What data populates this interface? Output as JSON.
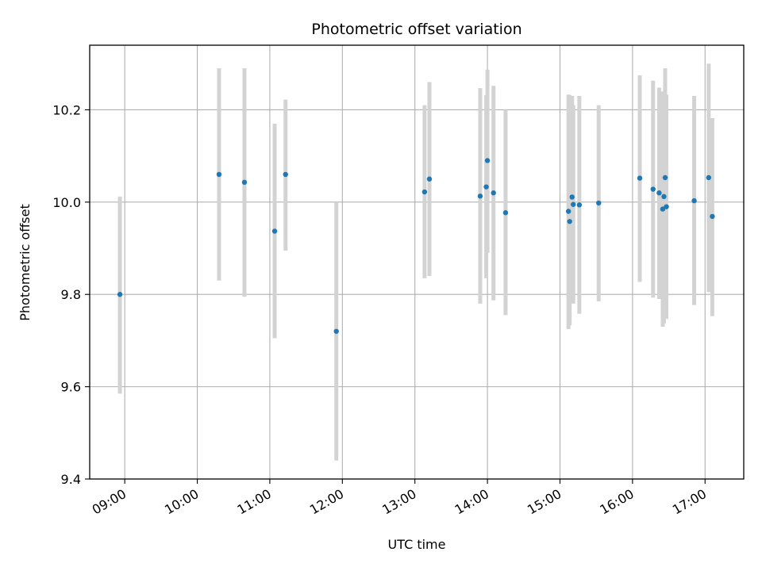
{
  "chart_data": {
    "type": "scatter",
    "title": "Photometric offset variation",
    "xlabel": "UTC time",
    "ylabel": "Photometric offset",
    "x_axis": "time",
    "xlim": [
      "08:31",
      "17:32"
    ],
    "ylim": [
      9.4,
      10.34
    ],
    "x_ticks": [
      "09:00",
      "10:00",
      "11:00",
      "12:00",
      "13:00",
      "14:00",
      "15:00",
      "16:00",
      "17:00"
    ],
    "y_ticks": [
      "9.4",
      "9.6",
      "9.8",
      "10.0",
      "10.2"
    ],
    "y_tick_values": [
      9.4,
      9.6,
      9.8,
      10.0,
      10.2
    ],
    "grid": true,
    "colors": {
      "points": "#1f77b4",
      "error_bars": "#d3d3d3",
      "grid": "#b0b0b0"
    },
    "points": [
      {
        "t": "08:56",
        "y": 9.8,
        "lo": 9.585,
        "hi": 10.012
      },
      {
        "t": "10:18",
        "y": 10.06,
        "lo": 9.83,
        "hi": 10.29
      },
      {
        "t": "10:39",
        "y": 10.043,
        "lo": 9.795,
        "hi": 10.29
      },
      {
        "t": "11:04",
        "y": 9.937,
        "lo": 9.705,
        "hi": 10.17
      },
      {
        "t": "11:13",
        "y": 10.06,
        "lo": 9.895,
        "hi": 10.222
      },
      {
        "t": "11:55",
        "y": 9.72,
        "lo": 9.44,
        "hi": 10.0
      },
      {
        "t": "13:08",
        "y": 10.022,
        "lo": 9.835,
        "hi": 10.21
      },
      {
        "t": "13:12",
        "y": 10.05,
        "lo": 9.84,
        "hi": 10.26
      },
      {
        "t": "13:54",
        "y": 10.013,
        "lo": 9.78,
        "hi": 10.247
      },
      {
        "t": "13:59",
        "y": 10.033,
        "lo": 9.835,
        "hi": 10.232
      },
      {
        "t": "14:00",
        "y": 10.09,
        "lo": 9.89,
        "hi": 10.287
      },
      {
        "t": "14:05",
        "y": 10.02,
        "lo": 9.787,
        "hi": 10.252
      },
      {
        "t": "14:15",
        "y": 9.977,
        "lo": 9.755,
        "hi": 10.2
      },
      {
        "t": "15:07",
        "y": 9.98,
        "lo": 9.725,
        "hi": 10.233
      },
      {
        "t": "15:08",
        "y": 9.958,
        "lo": 9.733,
        "hi": 10.232
      },
      {
        "t": "15:10",
        "y": 10.011,
        "lo": 9.79,
        "hi": 10.23
      },
      {
        "t": "15:11",
        "y": 9.995,
        "lo": 9.78,
        "hi": 10.21
      },
      {
        "t": "15:16",
        "y": 9.994,
        "lo": 9.758,
        "hi": 10.23
      },
      {
        "t": "15:32",
        "y": 9.998,
        "lo": 9.785,
        "hi": 10.21
      },
      {
        "t": "16:06",
        "y": 10.052,
        "lo": 9.827,
        "hi": 10.275
      },
      {
        "t": "16:17",
        "y": 10.028,
        "lo": 9.793,
        "hi": 10.263
      },
      {
        "t": "16:22",
        "y": 10.02,
        "lo": 9.79,
        "hi": 10.248
      },
      {
        "t": "16:25",
        "y": 9.985,
        "lo": 9.73,
        "hi": 10.24
      },
      {
        "t": "16:26",
        "y": 10.012,
        "lo": 9.737,
        "hi": 10.232
      },
      {
        "t": "16:27",
        "y": 10.053,
        "lo": 9.817,
        "hi": 10.29
      },
      {
        "t": "16:28",
        "y": 9.99,
        "lo": 9.747,
        "hi": 10.233
      },
      {
        "t": "16:51",
        "y": 10.003,
        "lo": 9.777,
        "hi": 10.23
      },
      {
        "t": "17:03",
        "y": 10.053,
        "lo": 9.805,
        "hi": 10.3
      },
      {
        "t": "17:06",
        "y": 9.969,
        "lo": 9.753,
        "hi": 10.182
      }
    ]
  }
}
